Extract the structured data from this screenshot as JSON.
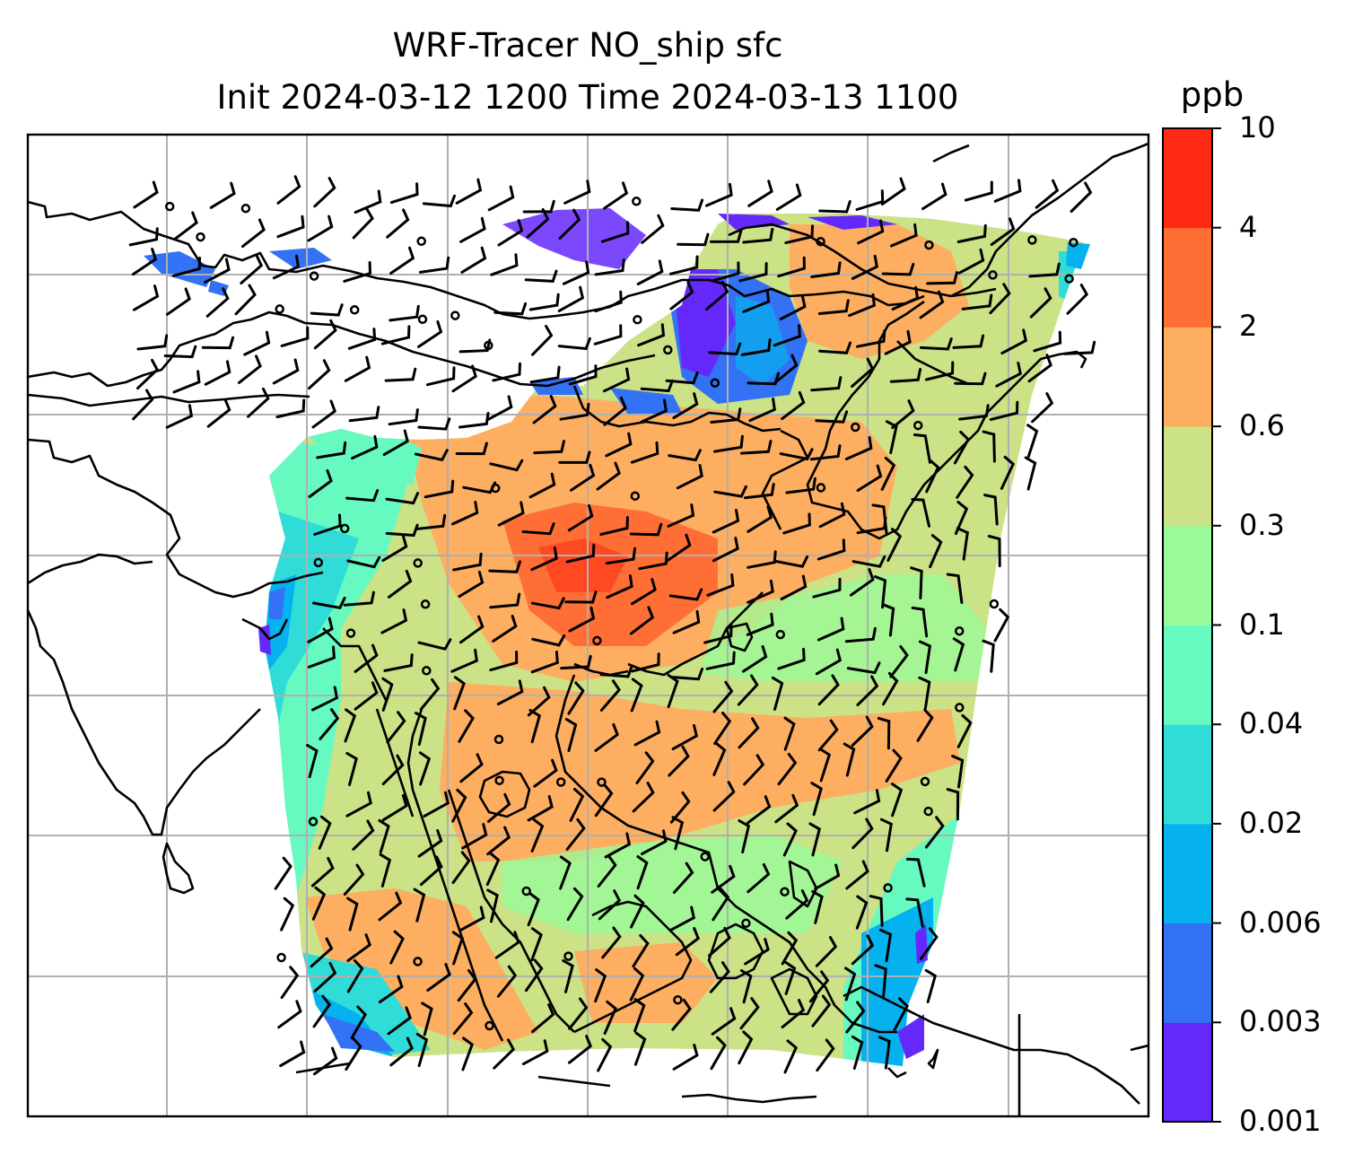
{
  "title": {
    "line1": "WRF-Tracer NO_ship sfc",
    "line2": "Init 2024-03-12 1200 Time 2024-03-13 1100"
  },
  "colorbar": {
    "unit": "ppb",
    "levels": [
      "0.001",
      "0.003",
      "0.006",
      "0.02",
      "0.04",
      "0.1",
      "0.3",
      "0.6",
      "2",
      "4",
      "10"
    ],
    "colors": [
      "#6429fa",
      "#3372f5",
      "#05b1ee",
      "#30dcd8",
      "#66fac1",
      "#99fb9a",
      "#cbe286",
      "#fdae61",
      "#ff6f35",
      "#ff2a14"
    ]
  },
  "map": {
    "type": "filled contour map with wind barbs",
    "field": "NO_ship surface concentration",
    "domain_shape": "trapezoid (projected model domain)",
    "coastline_color": "#000000",
    "gridline_color": "#b0b0b0"
  }
}
